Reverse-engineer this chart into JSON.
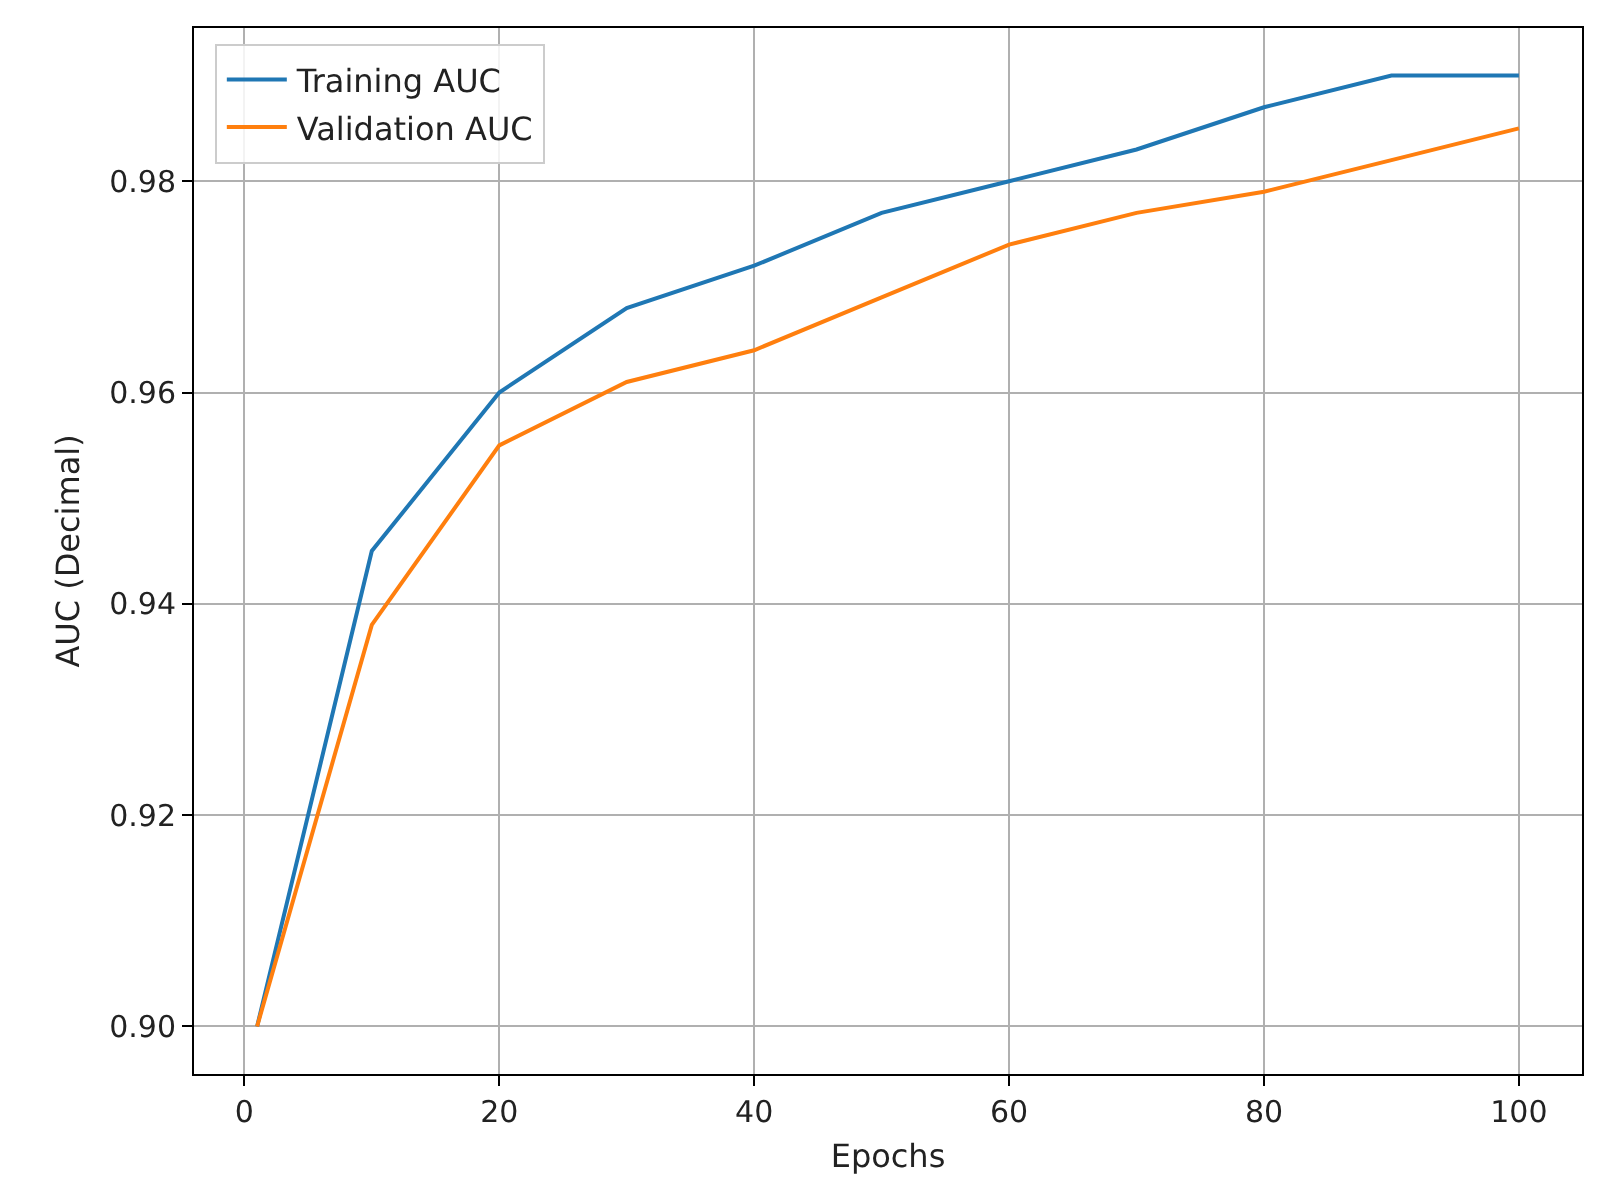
{
  "chart_data": {
    "type": "line",
    "xlabel": "Epochs",
    "ylabel": "AUC (Decimal)",
    "x": [
      1,
      10,
      20,
      30,
      40,
      50,
      60,
      70,
      80,
      90,
      100
    ],
    "series": [
      {
        "name": "Training AUC",
        "color": "#1f77b4",
        "values": [
          0.9,
          0.945,
          0.96,
          0.968,
          0.972,
          0.977,
          0.98,
          0.983,
          0.987,
          0.99,
          0.99
        ]
      },
      {
        "name": "Validation AUC",
        "color": "#ff7f0e",
        "values": [
          0.9,
          0.938,
          0.955,
          0.961,
          0.964,
          0.969,
          0.974,
          0.977,
          0.979,
          0.982,
          0.985
        ]
      }
    ],
    "xlim": [
      -3.95,
      104.95
    ],
    "xticks": [
      0,
      20,
      40,
      60,
      80,
      100
    ],
    "ylim": [
      0.8955,
      0.9945
    ],
    "yticks": [
      {
        "value": 0.9,
        "label": "0.90"
      },
      {
        "value": 0.92,
        "label": "0.92"
      },
      {
        "value": 0.94,
        "label": "0.94"
      },
      {
        "value": 0.96,
        "label": "0.96"
      },
      {
        "value": 0.98,
        "label": "0.98"
      }
    ],
    "grid": true,
    "legend": "top left",
    "marker": "none",
    "line_style": "solid"
  }
}
